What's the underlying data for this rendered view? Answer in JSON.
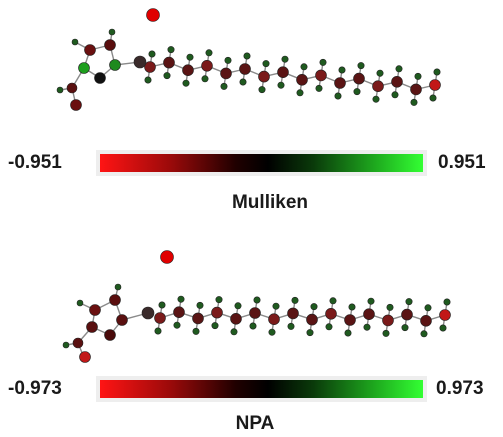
{
  "panels": [
    {
      "min_label": "-0.951",
      "max_label": "0.951",
      "caption": "Mulliken"
    },
    {
      "min_label": "-0.973",
      "max_label": "0.973",
      "caption": "NPA"
    }
  ],
  "colors": {
    "negative": "#ff1414",
    "neutral": "#000000",
    "positive": "#33ff33",
    "oxygen": "#e00000",
    "hydrogen": "#1f5a1f",
    "bond": "#8a8a8a"
  }
}
